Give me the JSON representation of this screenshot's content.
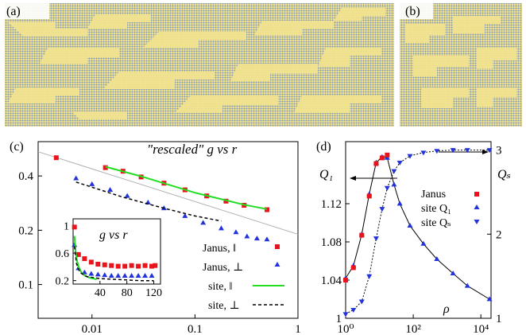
{
  "palette": {
    "blue": "#7e97b8",
    "yellow": "#f3e48f",
    "red": "#e8141b",
    "triangle_blue": "#2233dd",
    "green": "#22dd22",
    "gray": "#b0b0b0",
    "black": "#000000"
  },
  "panels": {
    "a": {
      "label": "(a)"
    },
    "b": {
      "label": "(b)"
    }
  },
  "chart_data": [
    {
      "panel_label": "(c)",
      "type": "scatter",
      "title": "\"rescaled\" g vs r",
      "xscale": "log",
      "yscale": "log",
      "xlim": [
        0.003,
        1
      ],
      "ylim": [
        0.065,
        0.62
      ],
      "xticks": [
        0.01,
        0.1,
        1
      ],
      "xtick_labels": [
        "0.01",
        "0.1",
        "1"
      ],
      "yticks": [
        0.1,
        0.2,
        0.4
      ],
      "ytick_labels": [
        "0.1",
        "0.2",
        "0.4"
      ],
      "grid": false,
      "legend": "lower-right",
      "reference_line": {
        "x": [
          0.003,
          1
        ],
        "y": [
          0.545,
          0.19
        ],
        "color": "gray"
      },
      "series": [
        {
          "name": "Janus, ‖",
          "marker": "square",
          "color": "red",
          "x": [
            0.0045,
            0.0135,
            0.02,
            0.03,
            0.05,
            0.08,
            0.13,
            0.2,
            0.3,
            0.5
          ],
          "y": [
            0.505,
            0.445,
            0.425,
            0.395,
            0.365,
            0.335,
            0.31,
            0.29,
            0.275,
            0.26
          ]
        },
        {
          "name": "Janus, ⊥",
          "marker": "triangle",
          "color": "triangle_blue",
          "x": [
            0.007,
            0.01,
            0.015,
            0.022,
            0.035,
            0.05,
            0.08,
            0.12,
            0.18,
            0.25,
            0.32,
            0.4,
            0.5
          ],
          "y": [
            0.388,
            0.36,
            0.335,
            0.31,
            0.285,
            0.265,
            0.24,
            0.22,
            0.205,
            0.195,
            0.185,
            0.18,
            0.178
          ]
        },
        {
          "name": "site, ‖",
          "line": "solid",
          "color": "green",
          "x": [
            0.0135,
            0.03,
            0.1,
            0.3,
            0.5
          ],
          "y": [
            0.45,
            0.398,
            0.323,
            0.277,
            0.262
          ]
        },
        {
          "name": "site, ⊥",
          "line": "dashed",
          "color": "black",
          "x": [
            0.007,
            0.02,
            0.05,
            0.1,
            0.18
          ],
          "y": [
            0.37,
            0.305,
            0.265,
            0.24,
            0.225
          ]
        }
      ],
      "inset": {
        "title": "g vs r",
        "xlim": [
          0,
          130
        ],
        "ylim": [
          0.15,
          1.1
        ],
        "xticks": [
          40,
          80,
          120
        ],
        "xtick_labels": [
          "40",
          "80",
          "120"
        ],
        "yticks": [
          0.2,
          0.6,
          1
        ],
        "ytick_labels": [
          "0.2",
          "0.6",
          "1"
        ],
        "series": [
          {
            "marker": "square",
            "color": "red",
            "x": [
              2,
              8,
              17,
              27,
              37,
              47,
              57,
              67,
              77,
              87,
              97,
              107,
              117,
              122
            ],
            "y": [
              0.98,
              0.58,
              0.52,
              0.47,
              0.44,
              0.43,
              0.42,
              0.41,
              0.41,
              0.42,
              0.41,
              0.42,
              0.41,
              0.42
            ]
          },
          {
            "marker": "triangle",
            "color": "triangle_blue",
            "x": [
              2,
              8,
              17,
              27,
              37,
              47,
              57,
              67,
              77,
              87,
              97,
              107,
              117
            ],
            "y": [
              0.72,
              0.38,
              0.32,
              0.3,
              0.29,
              0.28,
              0.27,
              0.27,
              0.27,
              0.27,
              0.27,
              0.27,
              0.27
            ]
          },
          {
            "line": "solid",
            "color": "green",
            "x": [
              2,
              4,
              6,
              9,
              13,
              18,
              25,
              35
            ],
            "y": [
              0.85,
              0.6,
              0.48,
              0.38,
              0.31,
              0.27,
              0.24,
              0.22
            ]
          },
          {
            "line": "dashed",
            "color": "black",
            "x": [
              2,
              5,
              10,
              20,
              40,
              60,
              80,
              100,
              120
            ],
            "y": [
              0.7,
              0.45,
              0.32,
              0.26,
              0.23,
              0.22,
              0.21,
              0.2,
              0.2
            ]
          }
        ]
      }
    },
    {
      "panel_label": "(d)",
      "type": "scatter",
      "xlabel": "ρ",
      "xscale": "log",
      "xlim": [
        1,
        20000
      ],
      "xticks": [
        1,
        100,
        10000
      ],
      "xtick_labels": [
        "10⁰",
        "10²",
        "10⁴"
      ],
      "y_left": {
        "label": "Q₁",
        "lim": [
          1,
          1.185
        ],
        "ticks": [
          1,
          1.04,
          1.08,
          1.12
        ],
        "tick_labels": [
          "1",
          "1.04",
          "1.08",
          "1.12"
        ]
      },
      "y_right": {
        "label": "Qₛ",
        "lim": [
          1,
          3.1
        ],
        "ticks": [
          1,
          2,
          3
        ],
        "tick_labels": [
          "1",
          "2",
          "3"
        ]
      },
      "legend_title": "Janus",
      "legend": "top-right",
      "series": [
        {
          "name": "Janus",
          "marker": "square",
          "color": "red",
          "x": [
            1,
            1.7,
            3,
            5,
            8,
            12,
            17
          ],
          "y": [
            1.04,
            1.053,
            1.087,
            1.128,
            1.162,
            1.168,
            1.171
          ]
        },
        {
          "name": "site Q₁",
          "marker": "triangle",
          "color": "triangle_blue",
          "axis": "left",
          "x": [
            1,
            1.7,
            3,
            5,
            8,
            12,
            17,
            27,
            40,
            80,
            200,
            500,
            1500,
            4000,
            18000
          ],
          "y": [
            1.042,
            1.055,
            1.088,
            1.13,
            1.163,
            1.169,
            1.168,
            1.14,
            1.12,
            1.097,
            1.078,
            1.062,
            1.047,
            1.034,
            1.02
          ]
        },
        {
          "name": "site Qₛ",
          "marker": "triangle-down",
          "color": "triangle_blue",
          "axis": "right",
          "x": [
            1,
            1.7,
            3,
            5,
            8,
            12,
            17,
            27,
            40,
            80,
            200,
            500,
            1500,
            4000,
            18000
          ],
          "y": [
            1.05,
            1.1,
            1.2,
            1.5,
            1.95,
            2.3,
            2.55,
            2.75,
            2.85,
            2.93,
            2.97,
            2.99,
            3.0,
            3.0,
            3.0
          ]
        }
      ]
    }
  ]
}
